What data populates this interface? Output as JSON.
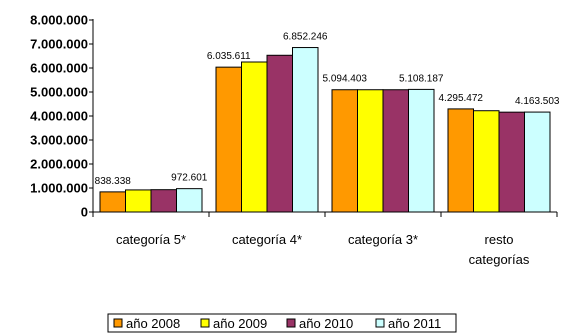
{
  "chart_data": {
    "type": "bar",
    "categories": [
      [
        "categoría 5*"
      ],
      [
        "categoría 4*"
      ],
      [
        "categoría 3*"
      ],
      [
        "resto",
        "categorías"
      ]
    ],
    "series": [
      {
        "name": "año 2008",
        "color": "#ff9900",
        "values": [
          838338,
          6035611,
          5094403,
          4295472
        ]
      },
      {
        "name": "año 2009",
        "color": "#ffff00",
        "values": [
          920000,
          6250000,
          5094403,
          4220000
        ]
      },
      {
        "name": "año 2010",
        "color": "#993366",
        "values": [
          930000,
          6530000,
          5094403,
          4160000
        ]
      },
      {
        "name": "año 2011",
        "color": "#ccffff",
        "values": [
          972601,
          6852246,
          5108187,
          4163503
        ]
      }
    ],
    "data_labels": [
      {
        "category": 0,
        "series": 0,
        "text": "838.338"
      },
      {
        "category": 0,
        "series": 3,
        "text": "972.601"
      },
      {
        "category": 1,
        "series": 0,
        "text": "6.035.611"
      },
      {
        "category": 1,
        "series": 3,
        "text": "6.852.246"
      },
      {
        "category": 2,
        "series": 0,
        "text": "5.094.403"
      },
      {
        "category": 2,
        "series": 3,
        "text": "5.108.187"
      },
      {
        "category": 3,
        "series": 0,
        "text": "4.295.472"
      },
      {
        "category": 3,
        "series": 3,
        "text": "4.163.503"
      }
    ],
    "ylim": [
      0,
      8000000
    ],
    "yticks": [
      {
        "value": 0,
        "label": "0"
      },
      {
        "value": 1000000,
        "label": "1.000.000"
      },
      {
        "value": 2000000,
        "label": "2.000.000"
      },
      {
        "value": 3000000,
        "label": "3.000.000"
      },
      {
        "value": 4000000,
        "label": "4.000.000"
      },
      {
        "value": 5000000,
        "label": "5.000.000"
      },
      {
        "value": 6000000,
        "label": "6.000.000"
      },
      {
        "value": 7000000,
        "label": "7.000.000"
      },
      {
        "value": 8000000,
        "label": "8.000.000"
      }
    ],
    "grid": false,
    "legend_position": "bottom",
    "title": "",
    "xlabel": "",
    "ylabel": ""
  }
}
